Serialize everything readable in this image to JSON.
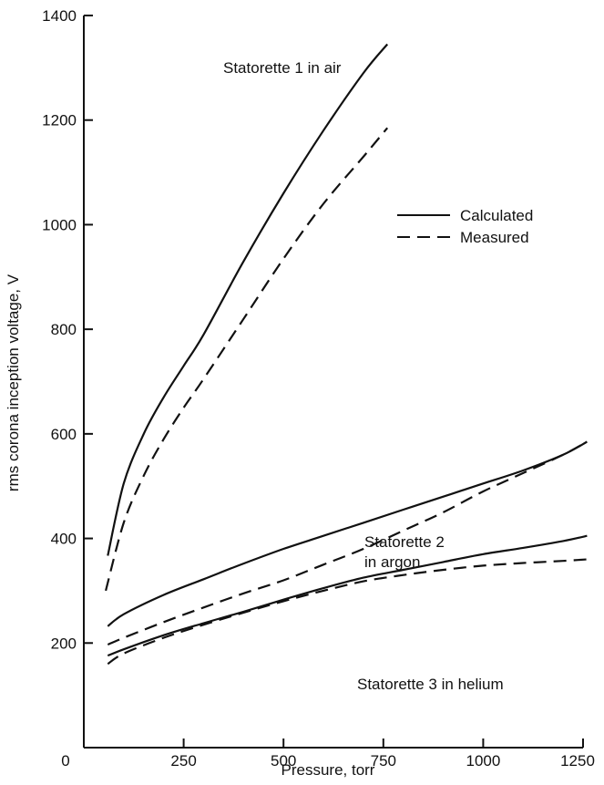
{
  "chart_data": {
    "type": "line",
    "xlabel": "Pressure, torr",
    "ylabel": "rms corona inception voltage, V",
    "xlim": [
      0,
      1250
    ],
    "ylim": [
      0,
      1400
    ],
    "x_ticks": [
      0,
      250,
      500,
      750,
      1000,
      1250
    ],
    "y_ticks": [
      200,
      400,
      600,
      800,
      1000,
      1200,
      1400
    ],
    "x_tick_labels": [
      "0",
      "250",
      "500",
      "750",
      "1000",
      "1250"
    ],
    "y_tick_labels": [
      "200",
      "400",
      "600",
      "800",
      "1000",
      "1200",
      "1400"
    ],
    "grid": false,
    "legend": {
      "position": "upper-right",
      "entries": [
        {
          "label": "Calculated",
          "style": "solid"
        },
        {
          "label": "Measured",
          "style": "dashed"
        }
      ]
    },
    "annotations": [
      {
        "id": "s1",
        "lines": [
          "Statorette 1 in air"
        ]
      },
      {
        "id": "s2",
        "lines": [
          "Statorette 2",
          "in argon"
        ]
      },
      {
        "id": "s3",
        "lines": [
          "Statorette 3 in helium"
        ]
      }
    ],
    "series": [
      {
        "style": "solid",
        "x": [
          60,
          100,
          150,
          200,
          250,
          300,
          400,
          500,
          600,
          700,
          760
        ],
        "y": [
          367,
          505,
          600,
          670,
          730,
          790,
          930,
          1060,
          1180,
          1290,
          1345
        ]
      },
      {
        "style": "dashed",
        "x": [
          55,
          100,
          150,
          200,
          250,
          300,
          400,
          500,
          600,
          700,
          760
        ],
        "y": [
          300,
          430,
          520,
          590,
          650,
          705,
          820,
          935,
          1040,
          1130,
          1185
        ]
      },
      {
        "style": "solid",
        "x": [
          60,
          100,
          200,
          300,
          400,
          500,
          600,
          700,
          800,
          900,
          1000,
          1100,
          1200,
          1260
        ],
        "y": [
          232,
          255,
          292,
          322,
          352,
          380,
          405,
          430,
          455,
          480,
          505,
          530,
          560,
          585
        ]
      },
      {
        "style": "dashed",
        "x": [
          60,
          100,
          200,
          300,
          400,
          500,
          600,
          700,
          800,
          900,
          1000,
          1100,
          1200,
          1260
        ],
        "y": [
          197,
          210,
          240,
          268,
          295,
          320,
          350,
          380,
          415,
          450,
          490,
          525,
          560,
          585
        ]
      },
      {
        "style": "solid",
        "x": [
          60,
          100,
          200,
          300,
          400,
          500,
          600,
          700,
          800,
          900,
          1000,
          1100,
          1200,
          1260
        ],
        "y": [
          176,
          188,
          215,
          238,
          260,
          283,
          305,
          325,
          340,
          355,
          370,
          382,
          395,
          405
        ]
      },
      {
        "style": "dashed",
        "x": [
          60,
          100,
          200,
          300,
          400,
          500,
          600,
          700,
          800,
          900,
          1000,
          1100,
          1200,
          1260
        ],
        "y": [
          160,
          180,
          210,
          235,
          258,
          280,
          300,
          318,
          330,
          340,
          348,
          353,
          357,
          360
        ]
      }
    ]
  }
}
